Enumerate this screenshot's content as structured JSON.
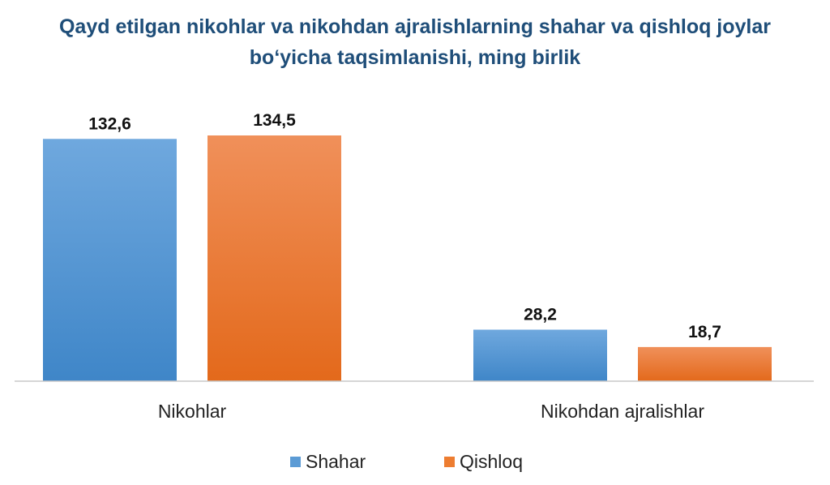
{
  "chart_data": {
    "type": "bar",
    "title_lines": [
      "Qayd etilgan nikohlar va nikohdan ajralishlarning shahar va qishloq joylar",
      "bo‘yicha taqsimlanishi, ming birlik"
    ],
    "categories": [
      "Nikohlar",
      "Nikohdan ajralishlar"
    ],
    "series": [
      {
        "name": "Shahar",
        "values": [
          132.6,
          28.2
        ],
        "labels": [
          "132,6",
          "28,2"
        ],
        "color": "#5b9bd5"
      },
      {
        "name": "Qishloq",
        "values": [
          134.5,
          18.7
        ],
        "labels": [
          "134,5",
          "18,7"
        ],
        "color": "#ed7d31"
      }
    ],
    "ylim": [
      0,
      134.5
    ],
    "grid": false,
    "legend_position": "bottom"
  }
}
